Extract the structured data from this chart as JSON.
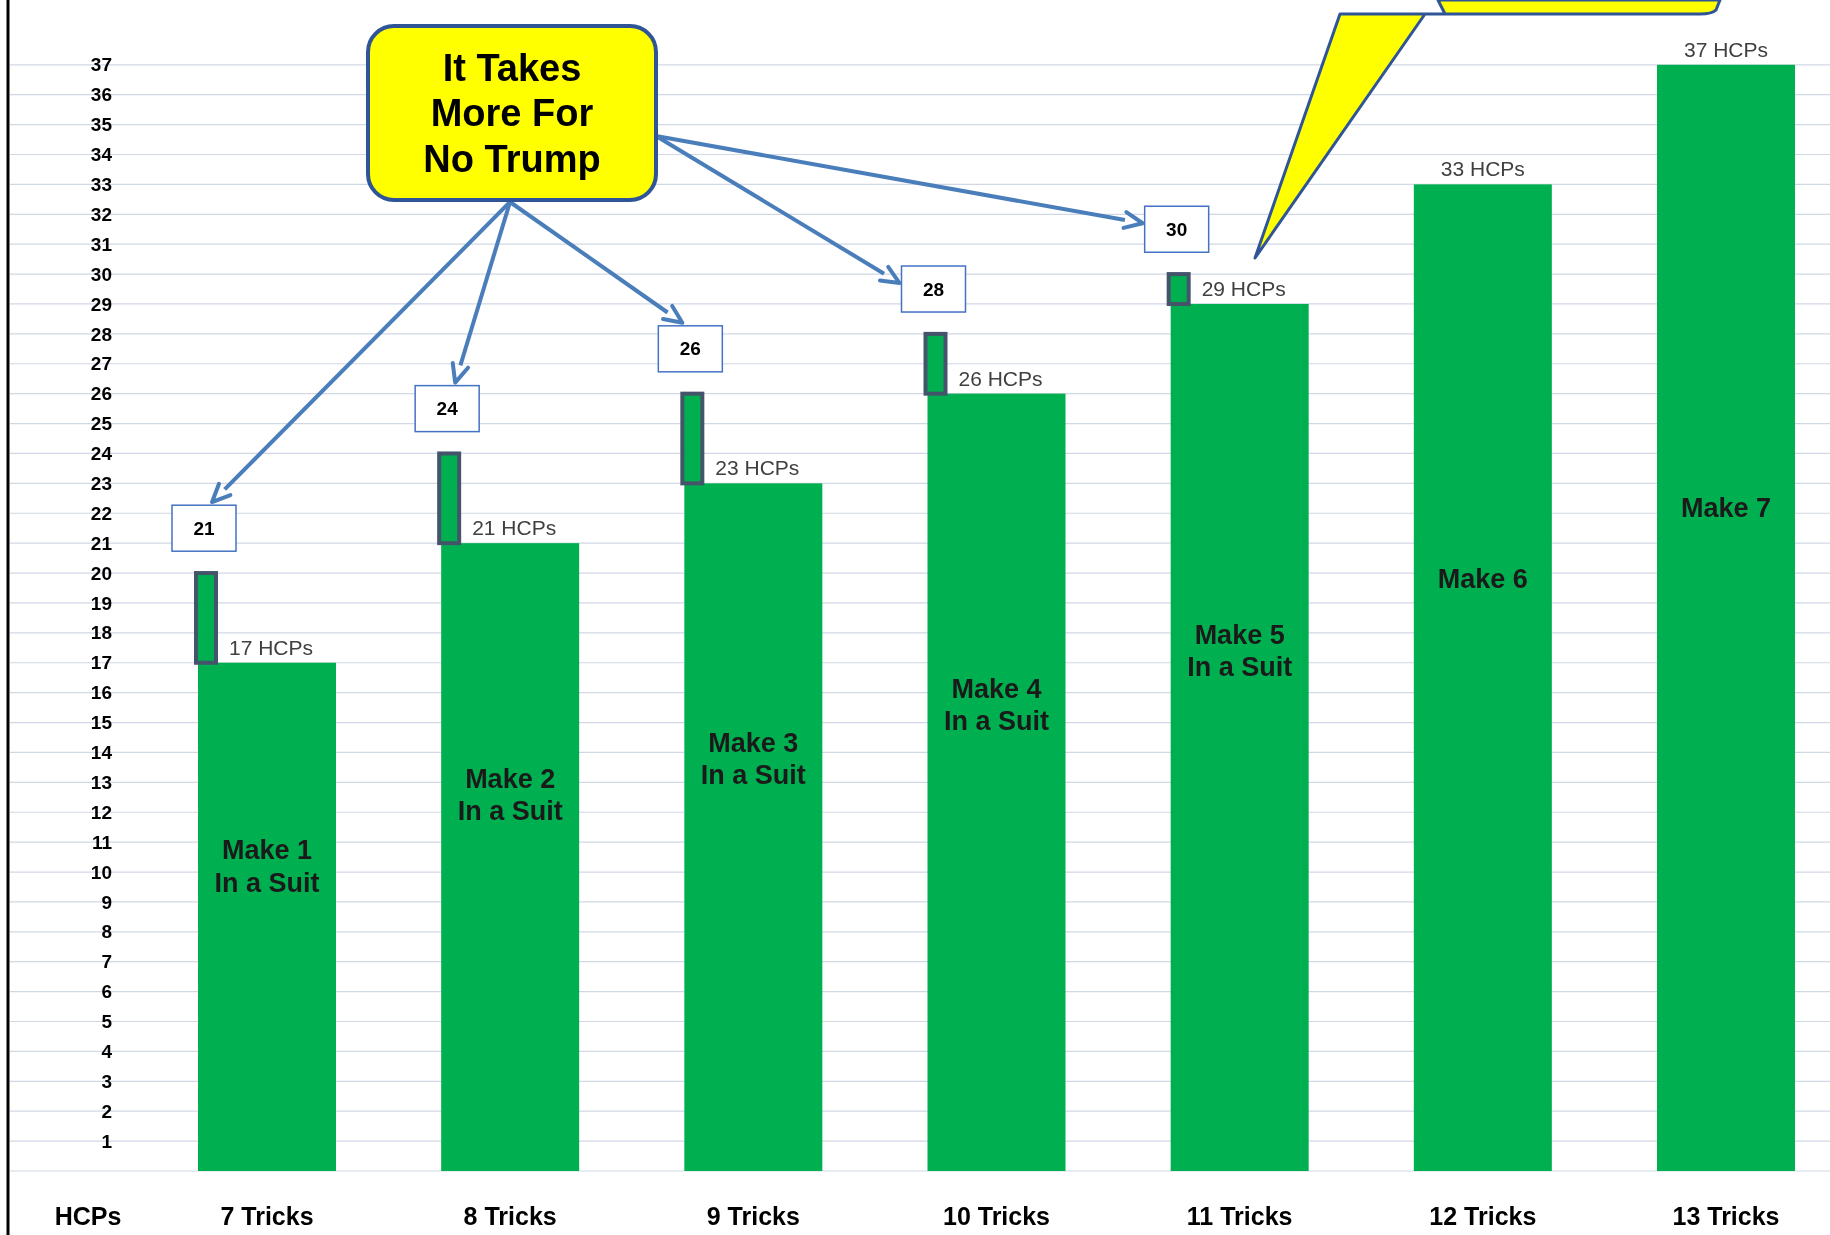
{
  "chart_data": {
    "type": "bar",
    "categories": [
      "7 Tricks",
      "8 Tricks",
      "9 Tricks",
      "10 Tricks",
      "11 Tricks",
      "12 Tricks",
      "13 Tricks"
    ],
    "stacked": true,
    "series": [
      {
        "color": "#00b050",
        "values": [
          17,
          21,
          23,
          26,
          29,
          33,
          37
        ],
        "value_labels": [
          "17 HCPs",
          "21 HCPs",
          "23 HCPs",
          "26 HCPs",
          "29 HCPs",
          "33 HCPs",
          "37 HCPs"
        ]
      },
      {
        "color": "#00b050",
        "values": [
          3,
          3,
          3,
          2,
          1,
          null,
          null
        ]
      }
    ],
    "ylim": [
      0,
      39
    ],
    "yticks": [
      1,
      2,
      3,
      4,
      5,
      6,
      7,
      8,
      9,
      10,
      11,
      12,
      13,
      14,
      15,
      16,
      17,
      18,
      19,
      20,
      21,
      22,
      23,
      24,
      25,
      26,
      27,
      28,
      29,
      30,
      31,
      32,
      33,
      34,
      35,
      36,
      37
    ],
    "grid": "y",
    "annotations": [
      "It Takes\nMore For\nNo Trump",
      "21",
      "24",
      "26",
      "28",
      "30",
      "Make 1\nIn a Suit",
      "Make 2\nIn a Suit",
      "Make 3\nIn a Suit",
      "Make 4\nIn a Suit",
      "Make 5\nIn a Suit",
      "Make 6",
      "Make 7",
      "HCPs"
    ]
  }
}
